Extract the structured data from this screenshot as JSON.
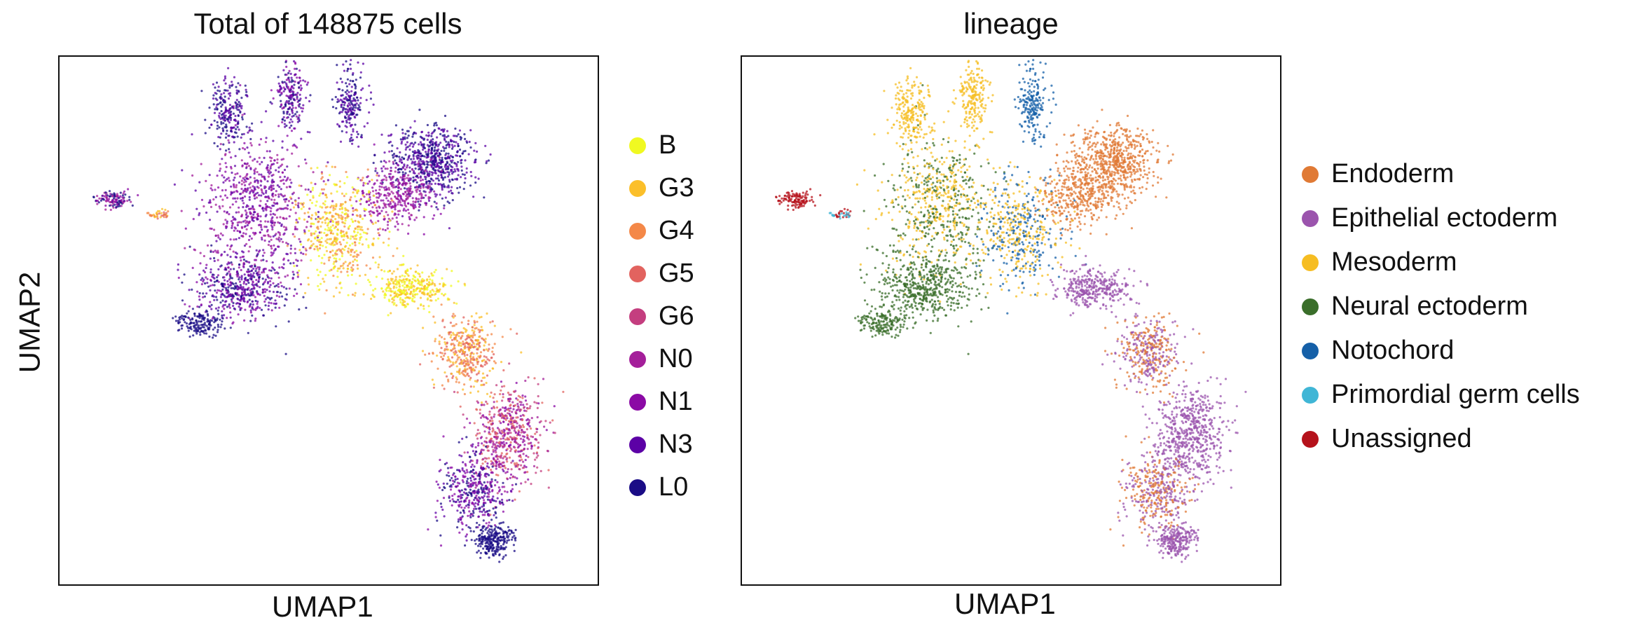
{
  "chart_data": [
    {
      "type": "scatter",
      "title": "Total of 148875 cells",
      "xlabel": "UMAP1",
      "ylabel": "UMAP2",
      "legend_position": "right",
      "grid": false,
      "series": [
        {
          "name": "B",
          "color": "#f0f921"
        },
        {
          "name": "G3",
          "color": "#fbbf2a"
        },
        {
          "name": "G4",
          "color": "#f48848"
        },
        {
          "name": "G5",
          "color": "#e2635f"
        },
        {
          "name": "G6",
          "color": "#c43e7f"
        },
        {
          "name": "N0",
          "color": "#a41f9a"
        },
        {
          "name": "N1",
          "color": "#8b0aa5"
        },
        {
          "name": "N3",
          "color": "#5c01a6"
        },
        {
          "name": "L0",
          "color": "#1a0c86"
        }
      ]
    },
    {
      "type": "scatter",
      "title": "lineage",
      "xlabel": "UMAP1",
      "ylabel": "",
      "legend_position": "right",
      "grid": false,
      "series": [
        {
          "name": "Endoderm",
          "color": "#e07a35"
        },
        {
          "name": "Epithelial ectoderm",
          "color": "#9b54ad"
        },
        {
          "name": "Mesoderm",
          "color": "#f6bd22"
        },
        {
          "name": "Neural ectoderm",
          "color": "#3a6e2a"
        },
        {
          "name": "Notochord",
          "color": "#1560a8"
        },
        {
          "name": "Primordial germ cells",
          "color": "#40b6d6"
        },
        {
          "name": "Unassigned",
          "color": "#b5121b"
        }
      ]
    }
  ]
}
